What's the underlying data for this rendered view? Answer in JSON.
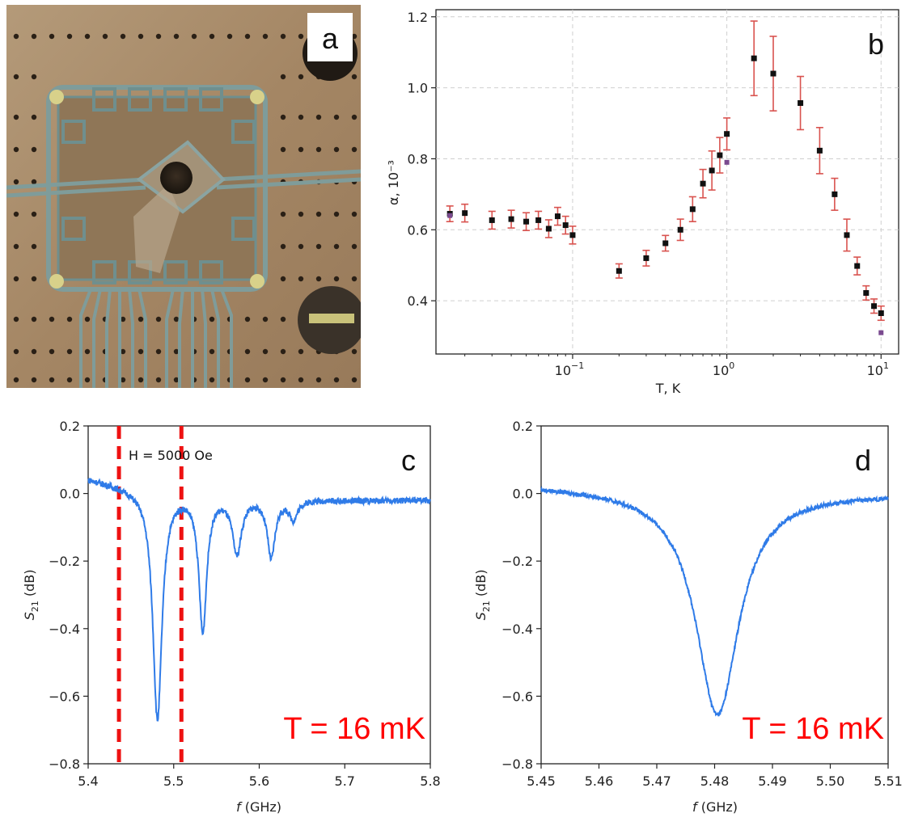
{
  "panels": {
    "a": {
      "letter": "a",
      "description_label": "photo"
    },
    "b": {
      "letter": "b"
    },
    "c": {
      "letter": "c",
      "temperature_label": "T = 16 mK",
      "field_label": "H = 5000 Oe"
    },
    "d": {
      "letter": "d",
      "temperature_label": "T = 16 mK"
    }
  },
  "colors": {
    "trace": "#2f7be8",
    "errorbar": "#d9534f",
    "marker": "#111111",
    "marker_alt": "#7a4a8f",
    "dashed": "#ee1111",
    "temp_text": "#ff0000"
  },
  "chart_data": [
    {
      "id": "b",
      "type": "scatter",
      "title": "",
      "xlabel": "T, K",
      "ylabel": "α, 10⁻³",
      "xscale": "log",
      "xlim": [
        0.013,
        13
      ],
      "ylim": [
        0.25,
        1.22
      ],
      "xticks": [
        {
          "value": 0.1,
          "base": "10",
          "exp": "−1"
        },
        {
          "value": 1,
          "base": "10",
          "exp": "0"
        },
        {
          "value": 10,
          "base": "10",
          "exp": "1"
        }
      ],
      "yticks": [
        0.4,
        0.6,
        0.8,
        1.0,
        1.2
      ],
      "ytick_labels": [
        "0.4",
        "0.6",
        "0.8",
        "1.0",
        "1.2"
      ],
      "grid": true,
      "points": [
        {
          "x": 0.016,
          "y": 0.645,
          "err": 0.022
        },
        {
          "x": 0.02,
          "y": 0.647,
          "err": 0.025
        },
        {
          "x": 0.03,
          "y": 0.627,
          "err": 0.025
        },
        {
          "x": 0.04,
          "y": 0.63,
          "err": 0.025
        },
        {
          "x": 0.05,
          "y": 0.623,
          "err": 0.025
        },
        {
          "x": 0.06,
          "y": 0.627,
          "err": 0.025
        },
        {
          "x": 0.07,
          "y": 0.603,
          "err": 0.025
        },
        {
          "x": 0.08,
          "y": 0.638,
          "err": 0.025
        },
        {
          "x": 0.09,
          "y": 0.613,
          "err": 0.025
        },
        {
          "x": 0.1,
          "y": 0.585,
          "err": 0.025
        },
        {
          "x": 0.2,
          "y": 0.484,
          "err": 0.02
        },
        {
          "x": 0.3,
          "y": 0.52,
          "err": 0.022
        },
        {
          "x": 0.4,
          "y": 0.562,
          "err": 0.022
        },
        {
          "x": 0.5,
          "y": 0.6,
          "err": 0.03
        },
        {
          "x": 0.6,
          "y": 0.658,
          "err": 0.035
        },
        {
          "x": 0.7,
          "y": 0.73,
          "err": 0.04
        },
        {
          "x": 0.8,
          "y": 0.767,
          "err": 0.055
        },
        {
          "x": 0.9,
          "y": 0.81,
          "err": 0.05
        },
        {
          "x": 1.0,
          "y": 0.87,
          "err": 0.045
        },
        {
          "x": 1.5,
          "y": 1.083,
          "err": 0.105
        },
        {
          "x": 2.0,
          "y": 1.04,
          "err": 0.105
        },
        {
          "x": 3.0,
          "y": 0.957,
          "err": 0.075
        },
        {
          "x": 4.0,
          "y": 0.823,
          "err": 0.065
        },
        {
          "x": 5.0,
          "y": 0.7,
          "err": 0.045
        },
        {
          "x": 6.0,
          "y": 0.585,
          "err": 0.045
        },
        {
          "x": 7.0,
          "y": 0.498,
          "err": 0.025
        },
        {
          "x": 8.0,
          "y": 0.422,
          "err": 0.02
        },
        {
          "x": 9.0,
          "y": 0.385,
          "err": 0.02
        },
        {
          "x": 10.0,
          "y": 0.365,
          "err": 0.02
        }
      ],
      "alt_points": [
        {
          "x": 0.016,
          "y": 0.64
        },
        {
          "x": 1.0,
          "y": 0.79
        },
        {
          "x": 10.0,
          "y": 0.31
        }
      ]
    },
    {
      "id": "c",
      "type": "line",
      "xlabel": "f (GHz)",
      "ylabel": "S21 (dB)",
      "ylabel_main": "S",
      "ylabel_sub": "21",
      "ylabel_unit": " (dB)",
      "xlim": [
        5.4,
        5.8
      ],
      "ylim": [
        -0.8,
        0.2
      ],
      "xticks": [
        5.4,
        5.5,
        5.6,
        5.7,
        5.8
      ],
      "xtick_labels": [
        "5.4",
        "5.5",
        "5.6",
        "5.7",
        "5.8"
      ],
      "yticks": [
        -0.8,
        -0.6,
        -0.4,
        -0.2,
        0.0,
        0.2
      ],
      "ytick_labels": [
        "−0.8",
        "−0.6",
        "−0.4",
        "−0.2",
        "0.0",
        "0.2"
      ],
      "baseline": [
        [
          5.4,
          0.045
        ],
        [
          5.45,
          0.02
        ],
        [
          5.5,
          0.01
        ],
        [
          5.6,
          -0.01
        ],
        [
          5.7,
          -0.02
        ],
        [
          5.8,
          -0.02
        ]
      ],
      "dips": [
        {
          "center": 5.481,
          "depth": -0.665,
          "width": 0.0065
        },
        {
          "center": 5.534,
          "depth": -0.4,
          "width": 0.0055
        },
        {
          "center": 5.574,
          "depth": -0.17,
          "width": 0.0065
        },
        {
          "center": 5.614,
          "depth": -0.185,
          "width": 0.0055
        },
        {
          "center": 5.64,
          "depth": -0.07,
          "width": 0.006
        }
      ],
      "dashed_lines_x": [
        5.436,
        5.509
      ]
    },
    {
      "id": "d",
      "type": "line",
      "xlabel": "f (GHz)",
      "ylabel": "S21 (dB)",
      "ylabel_main": "S",
      "ylabel_sub": "21",
      "ylabel_unit": " (dB)",
      "xlim": [
        5.45,
        5.51
      ],
      "ylim": [
        -0.8,
        0.2
      ],
      "xticks": [
        5.45,
        5.46,
        5.47,
        5.48,
        5.49,
        5.5,
        5.51
      ],
      "xtick_labels": [
        "5.45",
        "5.46",
        "5.47",
        "5.48",
        "5.49",
        "5.50",
        "5.51"
      ],
      "yticks": [
        -0.8,
        -0.6,
        -0.4,
        -0.2,
        0.0,
        0.2
      ],
      "ytick_labels": [
        "−0.8",
        "−0.6",
        "−0.4",
        "−0.2",
        "0.0",
        "0.2"
      ],
      "baseline": [
        [
          5.45,
          0.025
        ],
        [
          5.48,
          0.005
        ],
        [
          5.51,
          0.0
        ]
      ],
      "dips": [
        {
          "center": 5.4805,
          "depth": -0.655,
          "width": 0.0045
        }
      ]
    }
  ]
}
